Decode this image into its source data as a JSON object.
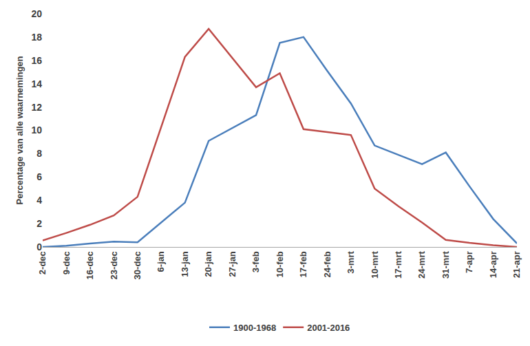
{
  "chart_data": {
    "type": "line",
    "y_label": "Percentage van alle waarnemingen",
    "categories": [
      "2-dec",
      "9-dec",
      "16-dec",
      "23-dec",
      "30-dec",
      "6-jan",
      "13-jan",
      "20-jan",
      "27-jan",
      "3-feb",
      "10-feb",
      "17-feb",
      "24-feb",
      "3-mrt",
      "10-mrt",
      "17-mrt",
      "24-mrt",
      "31-mrt",
      "7-apr",
      "14-apr",
      "21-apr"
    ],
    "series": [
      {
        "name": "1900-1968",
        "color": "#4a7ebb",
        "values": [
          0.0,
          0.1,
          0.3,
          0.45,
          0.4,
          2.1,
          3.8,
          9.1,
          10.2,
          11.3,
          17.5,
          18.0,
          15.1,
          12.3,
          8.7,
          7.9,
          7.1,
          8.1,
          5.2,
          2.4,
          0.3
        ]
      },
      {
        "name": "2001-2016",
        "color": "#be4b48",
        "values": [
          0.55,
          1.2,
          1.9,
          2.7,
          4.3,
          10.3,
          16.3,
          18.7,
          16.2,
          13.7,
          14.9,
          10.1,
          9.85,
          9.6,
          5.0,
          3.5,
          2.1,
          0.6,
          0.35,
          0.15,
          0.0
        ]
      }
    ],
    "ylim": [
      0,
      20
    ],
    "yticks": [
      0,
      2,
      4,
      6,
      8,
      10,
      12,
      14,
      16,
      18,
      20
    ],
    "grid": false,
    "legend": "bottom"
  }
}
